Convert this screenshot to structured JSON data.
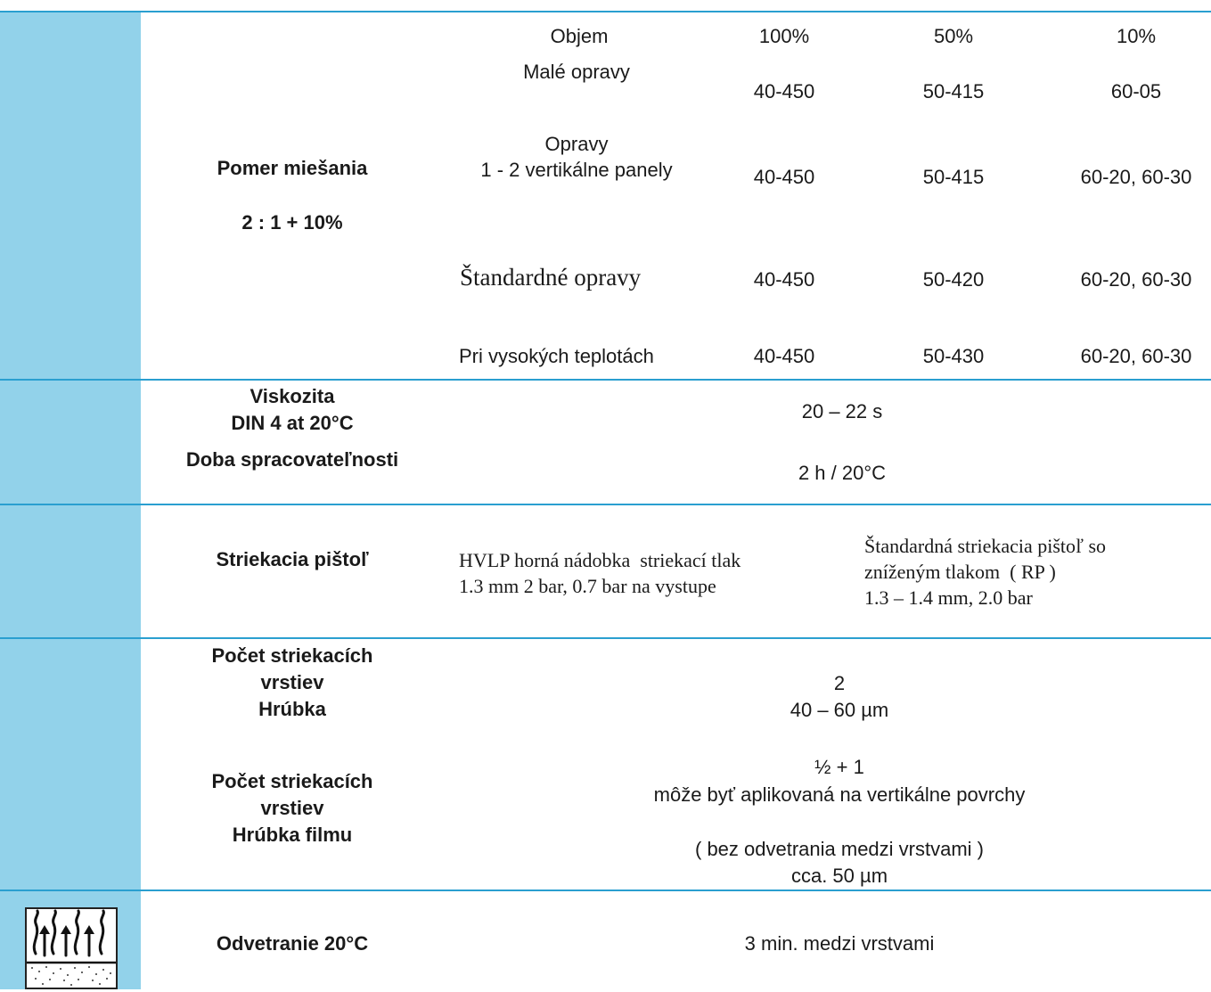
{
  "mixing": {
    "label": "Pomer miešania",
    "ratio": "2 : 1 + 10%",
    "header": {
      "objem": "Objem",
      "p100": "100%",
      "p50": "50%",
      "p10": "10%"
    },
    "rows": [
      {
        "name": "Malé opravy",
        "v100": "40-450",
        "v50": "50-415",
        "v10": "60-05"
      },
      {
        "name": "Opravy\n1 - 2 vertikálne panely",
        "v100": "40-450",
        "v50": "50-415",
        "v10": "60-20, 60-30"
      },
      {
        "name": "Štandardné opravy",
        "v100": "40-450",
        "v50": "50-420",
        "v10": "60-20, 60-30"
      },
      {
        "name": "Pri vysokých teplotách",
        "v100": "40-450",
        "v50": "50-430",
        "v10": "60-20, 60-30"
      }
    ]
  },
  "viscosity": {
    "label": "Viskozita\nDIN 4 at 20°C",
    "value": "20 – 22 s",
    "potlife_label": "Doba spracovateľnosti",
    "potlife_value": "2 h / 20°C"
  },
  "gun": {
    "label": "Striekacia pištoľ",
    "hvlp": "HVLP horná nádobka  striekací tlak\n1.3 mm 2 bar, 0.7 bar na vystupe",
    "standard": "Štandardná striekacia pištoľ so\nzníženým tlakom  ( RP )\n1.3 – 1.4 mm, 2.0 bar"
  },
  "coats": {
    "label1": "Počet striekacích\nvrstiev\nHrúbka",
    "value1": "2\n40 – 60 µm",
    "label2": "Počet striekacích\nvrstiev\nHrúbka filmu",
    "value2": "½ + 1\nmôže byť aplikovaná na vertikálne povrchy\n\n( bez odvetrania medzi vrstvami )\ncca. 50 µm"
  },
  "flash": {
    "icon": "flash-off-icon",
    "label": "Odvetranie 20°C",
    "value": "3 min. medzi vrstvami"
  },
  "colors": {
    "sidebar": "#92d2ea",
    "rule": "#2a9fd0"
  }
}
